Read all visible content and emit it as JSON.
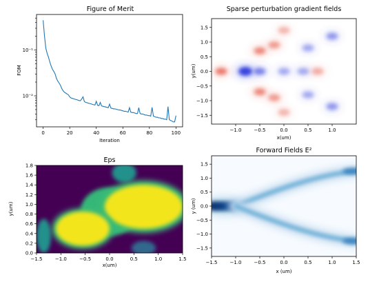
{
  "chart_data": [
    {
      "type": "line",
      "title": "Figure of Merit",
      "xlabel": "Iteration",
      "ylabel": "FOM",
      "yscale": "log",
      "xlim": [
        -5,
        105
      ],
      "ylim": [
        0.0021,
        0.6
      ],
      "x_ticks": [
        "0",
        "20",
        "40",
        "60",
        "80",
        "100"
      ],
      "y_ticks": [
        "10⁻¹",
        "10⁻²"
      ],
      "color": "#1f77b4",
      "x": [
        0,
        1,
        2,
        3,
        4,
        5,
        6,
        7,
        8,
        9,
        10,
        11,
        12,
        13,
        14,
        15,
        16,
        17,
        18,
        19,
        20,
        21,
        22,
        23,
        24,
        25,
        26,
        27,
        28,
        29,
        30,
        31,
        32,
        33,
        34,
        35,
        36,
        37,
        38,
        39,
        40,
        41,
        42,
        43,
        44,
        45,
        46,
        47,
        48,
        49,
        50,
        51,
        52,
        53,
        54,
        55,
        56,
        57,
        58,
        59,
        60,
        61,
        62,
        63,
        64,
        65,
        66,
        67,
        68,
        69,
        70,
        71,
        72,
        73,
        74,
        75,
        76,
        77,
        78,
        79,
        80,
        81,
        82,
        83,
        84,
        85,
        86,
        87,
        88,
        89,
        90,
        91,
        92,
        93,
        94,
        95,
        96,
        97,
        98,
        99,
        100
      ],
      "values": [
        0.45,
        0.2,
        0.11,
        0.085,
        0.07,
        0.055,
        0.045,
        0.038,
        0.034,
        0.03,
        0.024,
        0.021,
        0.019,
        0.017,
        0.0145,
        0.013,
        0.012,
        0.0115,
        0.011,
        0.0105,
        0.0095,
        0.009,
        0.0088,
        0.0086,
        0.0084,
        0.0083,
        0.0081,
        0.0079,
        0.0078,
        0.0085,
        0.0095,
        0.0075,
        0.0072,
        0.0071,
        0.0069,
        0.0068,
        0.0067,
        0.0065,
        0.0064,
        0.0063,
        0.0076,
        0.0062,
        0.0061,
        0.0072,
        0.006,
        0.0059,
        0.0058,
        0.0057,
        0.0056,
        0.0055,
        0.0066,
        0.0054,
        0.0053,
        0.0052,
        0.0052,
        0.0051,
        0.005,
        0.0049,
        0.0049,
        0.0048,
        0.0047,
        0.0046,
        0.0046,
        0.0045,
        0.0044,
        0.0055,
        0.0044,
        0.0043,
        0.0043,
        0.0042,
        0.0041,
        0.0041,
        0.0055,
        0.0041,
        0.004,
        0.004,
        0.0039,
        0.0038,
        0.0038,
        0.0037,
        0.0037,
        0.0036,
        0.0056,
        0.0036,
        0.0035,
        0.0034,
        0.0034,
        0.0033,
        0.0033,
        0.0032,
        0.0032,
        0.0031,
        0.0031,
        0.003,
        0.0058,
        0.003,
        0.0029,
        0.0028,
        0.0027,
        0.0027,
        0.0037
      ]
    },
    {
      "type": "heatmap",
      "title": "Sparse perturbation gradient fields",
      "xlabel": "x(um)",
      "ylabel": "y(um)",
      "xlim": [
        -1.5,
        1.5
      ],
      "ylim": [
        -1.8,
        1.8
      ],
      "x_ticks": [
        "−1.0",
        "−0.5",
        "0.0",
        "0.5",
        "1.0"
      ],
      "y_ticks": [
        "1.5",
        "1.0",
        "0.5",
        "0.0",
        "−0.5",
        "−1.0",
        "−1.5"
      ],
      "colormap": "bwr",
      "features": [
        {
          "x": -0.8,
          "y": 0.0,
          "value": -1.0
        },
        {
          "x": -1.3,
          "y": 0.0,
          "value": 0.7
        },
        {
          "x": -0.5,
          "y": 0.0,
          "value": -0.6
        },
        {
          "x": -0.5,
          "y": 0.7,
          "value": 0.6
        },
        {
          "x": -0.5,
          "y": -0.7,
          "value": 0.6
        },
        {
          "x": 0.0,
          "y": 0.0,
          "value": -0.4
        },
        {
          "x": -0.2,
          "y": 0.9,
          "value": 0.5
        },
        {
          "x": -0.2,
          "y": -0.9,
          "value": 0.5
        },
        {
          "x": 0.4,
          "y": 0.0,
          "value": -0.4
        },
        {
          "x": 0.7,
          "y": 0.0,
          "value": 0.4
        },
        {
          "x": 0.5,
          "y": 0.8,
          "value": -0.4
        },
        {
          "x": 0.5,
          "y": -0.8,
          "value": -0.4
        },
        {
          "x": 1.0,
          "y": 1.2,
          "value": -0.5
        },
        {
          "x": 1.0,
          "y": -1.2,
          "value": -0.5
        },
        {
          "x": 0.0,
          "y": 1.4,
          "value": 0.35
        },
        {
          "x": 0.0,
          "y": -1.4,
          "value": 0.35
        }
      ]
    },
    {
      "type": "heatmap",
      "title": "Eps",
      "xlabel": "x(um)",
      "ylabel": "y(um)",
      "xlim": [
        -1.5,
        1.5
      ],
      "ylim": [
        0.0,
        1.8
      ],
      "x_ticks": [
        "−1.5",
        "−1.0",
        "−0.5",
        "0.0",
        "0.5",
        "1.0",
        "1.5"
      ],
      "y_ticks": [
        "0.0",
        "0.2",
        "0.4",
        "0.6",
        "0.8",
        "1.0",
        "1.2",
        "1.4",
        "1.6",
        "1.8"
      ],
      "colormap": "viridis",
      "background": "#440154",
      "features": [
        {
          "x": 0.7,
          "y": 0.95,
          "rx": 0.8,
          "ry": 0.45,
          "value": 1.0
        },
        {
          "x": -0.55,
          "y": 0.5,
          "rx": 0.55,
          "ry": 0.35,
          "value": 1.0
        },
        {
          "x": 0.0,
          "y": 0.85,
          "rx": 0.6,
          "ry": 0.5,
          "value": 0.6
        },
        {
          "x": 0.3,
          "y": 1.65,
          "rx": 0.25,
          "ry": 0.2,
          "value": 0.45
        },
        {
          "x": -1.35,
          "y": 0.35,
          "rx": 0.15,
          "ry": 0.35,
          "value": 0.45
        },
        {
          "x": 0.7,
          "y": 0.1,
          "rx": 0.25,
          "ry": 0.15,
          "value": 0.35
        }
      ]
    },
    {
      "type": "heatmap",
      "title": "Forward Fields E²",
      "xlabel": "x (um)",
      "ylabel": "y (um)",
      "xlim": [
        -1.5,
        1.5
      ],
      "ylim": [
        -1.8,
        1.8
      ],
      "x_ticks": [
        "−1.5",
        "−1.0",
        "−0.5",
        "0.0",
        "0.5",
        "1.0",
        "1.5"
      ],
      "y_ticks": [
        "1.5",
        "1.0",
        "0.5",
        "0.0",
        "−0.5",
        "−1.0",
        "−1.5"
      ],
      "colormap": "Blues",
      "features": [
        {
          "path": "input",
          "x": [
            -1.5,
            -1.0
          ],
          "y": [
            0.0,
            0.0
          ],
          "value": 1.0
        },
        {
          "path": "upper branch",
          "x": [
            -1.0,
            0.0,
            0.8,
            1.5
          ],
          "y": [
            0.0,
            0.7,
            1.15,
            1.25
          ],
          "value": 0.45
        },
        {
          "path": "lower branch",
          "x": [
            -1.0,
            0.0,
            0.8,
            1.5
          ],
          "y": [
            0.0,
            -0.7,
            -1.15,
            -1.25
          ],
          "value": 0.45
        }
      ]
    }
  ]
}
